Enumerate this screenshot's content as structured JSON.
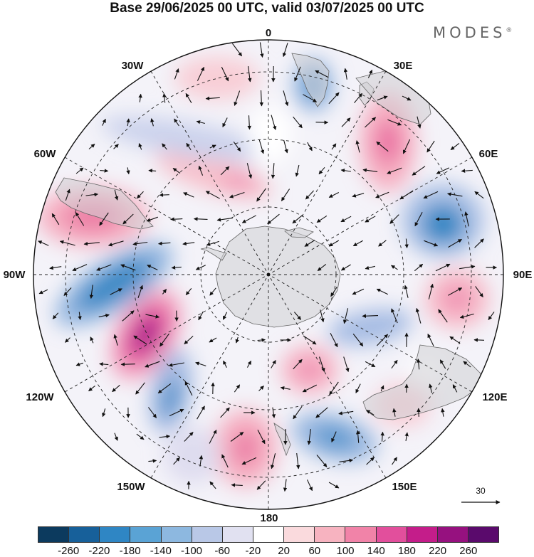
{
  "title": "Base 29/06/2025 00 UTC, valid 03/07/2025 00 UTC",
  "brand": "MODES",
  "brand_mark": "®",
  "longitude_labels": {
    "lon0": "0",
    "lon30e": "30E",
    "lon60e": "60E",
    "lon90e": "90E",
    "lon120e": "120E",
    "lon150e": "150E",
    "lon180": "180",
    "lon150w": "150W",
    "lon120w": "120W",
    "lon90w": "90W",
    "lon60w": "60W",
    "lon30w": "30W"
  },
  "reference_vector": {
    "label": "30"
  },
  "colorbar": {
    "colors": [
      "#0c3a5e",
      "#17609a",
      "#2f86c4",
      "#5aa3d5",
      "#8db8e0",
      "#b9c8e7",
      "#e1e1f1",
      "#ffffff",
      "#fadadd",
      "#f7b3c0",
      "#f183a8",
      "#e24f9c",
      "#c41d8a",
      "#96117f",
      "#5a0a6c"
    ],
    "ticks": [
      "-260",
      "-220",
      "-180",
      "-140",
      "-100",
      "-60",
      "-20",
      "20",
      "60",
      "100",
      "140",
      "180",
      "220",
      "260"
    ]
  },
  "anomaly_centers": [
    {
      "name": "high-south-pacific",
      "sign": "positive",
      "level": 220
    },
    {
      "name": "low-south-pacific-west",
      "sign": "negative",
      "level": -200
    },
    {
      "name": "high-south-atlantic-west",
      "sign": "positive",
      "level": 140
    },
    {
      "name": "low-indian-ocean",
      "sign": "negative",
      "level": -180
    },
    {
      "name": "high-indian-ocean-east",
      "sign": "positive",
      "level": 100
    },
    {
      "name": "high-south-indian-30e",
      "sign": "positive",
      "level": 140
    },
    {
      "name": "low-tasman",
      "sign": "negative",
      "level": -140
    },
    {
      "name": "high-ross-sea",
      "sign": "positive",
      "level": 120
    },
    {
      "name": "low-pacific-130w",
      "sign": "negative",
      "level": -160
    }
  ]
}
